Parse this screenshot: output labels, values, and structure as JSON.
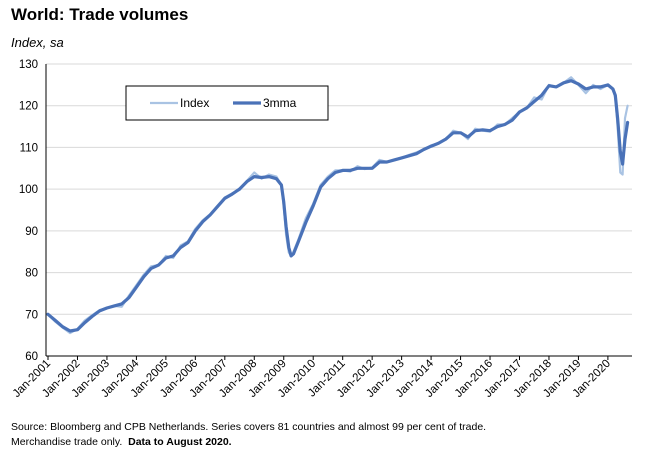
{
  "chart_data": {
    "type": "line",
    "title": "World: Trade volumes",
    "ylabel": "Index, sa",
    "xlabel": "",
    "ylim": [
      60,
      130
    ],
    "yticks": [
      60,
      70,
      80,
      90,
      100,
      110,
      120,
      130
    ],
    "xlim": [
      2001.0,
      2020.75
    ],
    "xticks": [
      "Jan-2001",
      "Jan-2002",
      "Jan-2003",
      "Jan-2004",
      "Jan-2005",
      "Jan-2006",
      "Jan-2007",
      "Jan-2008",
      "Jan-2009",
      "Jan-2010",
      "Jan-2011",
      "Jan-2012",
      "Jan-2013",
      "Jan-2014",
      "Jan-2015",
      "Jan-2016",
      "Jan-2017",
      "Jan-2018",
      "Jan-2019",
      "Jan-2020"
    ],
    "grid": "horizontal",
    "legend_position": "top-left",
    "series": [
      {
        "name": "Index",
        "color": "#a9c3e3",
        "x": [
          2001.0,
          2001.25,
          2001.5,
          2001.75,
          2002.0,
          2002.25,
          2002.5,
          2002.75,
          2003.0,
          2003.25,
          2003.5,
          2003.75,
          2004.0,
          2004.25,
          2004.5,
          2004.75,
          2005.0,
          2005.25,
          2005.5,
          2005.75,
          2006.0,
          2006.25,
          2006.5,
          2006.75,
          2007.0,
          2007.25,
          2007.5,
          2007.75,
          2008.0,
          2008.25,
          2008.5,
          2008.75,
          2008.92,
          2009.0,
          2009.08,
          2009.17,
          2009.25,
          2009.33,
          2009.5,
          2009.75,
          2010.0,
          2010.25,
          2010.5,
          2010.75,
          2011.0,
          2011.25,
          2011.5,
          2011.75,
          2012.0,
          2012.25,
          2012.5,
          2012.75,
          2013.0,
          2013.25,
          2013.5,
          2013.75,
          2014.0,
          2014.25,
          2014.5,
          2014.75,
          2015.0,
          2015.25,
          2015.5,
          2015.75,
          2016.0,
          2016.25,
          2016.5,
          2016.75,
          2017.0,
          2017.25,
          2017.5,
          2017.75,
          2018.0,
          2018.25,
          2018.5,
          2018.75,
          2019.0,
          2019.25,
          2019.5,
          2019.75,
          2020.0,
          2020.17,
          2020.25,
          2020.33,
          2020.42,
          2020.5,
          2020.58,
          2020.67
        ],
        "values": [
          70,
          68.2,
          66.8,
          65.5,
          66.5,
          68.5,
          69.8,
          71,
          71.5,
          72,
          71.8,
          74.5,
          77,
          79.5,
          81.5,
          81.8,
          84,
          83.5,
          86.5,
          87.5,
          90.5,
          92.5,
          94,
          96,
          98,
          99,
          99.8,
          102,
          104,
          102.5,
          103.5,
          103,
          101,
          96,
          89,
          84.8,
          84,
          85,
          88,
          93,
          96.5,
          101,
          103,
          104.5,
          104.5,
          104.2,
          105.5,
          104.8,
          105.2,
          107,
          106.5,
          107,
          107.5,
          108.2,
          108.8,
          109.5,
          110.5,
          111,
          112,
          114,
          113.5,
          112,
          114.5,
          114,
          113.8,
          115.5,
          115.5,
          117,
          118.5,
          119.5,
          122,
          121.5,
          125,
          124.5,
          125.5,
          126.8,
          125,
          123,
          125,
          124,
          125,
          124,
          122,
          115,
          104,
          103.5,
          117,
          120
        ]
      },
      {
        "name": "3mma",
        "color": "#4a72b8",
        "x": [
          2001.0,
          2001.25,
          2001.5,
          2001.75,
          2002.0,
          2002.25,
          2002.5,
          2002.75,
          2003.0,
          2003.25,
          2003.5,
          2003.75,
          2004.0,
          2004.25,
          2004.5,
          2004.75,
          2005.0,
          2005.25,
          2005.5,
          2005.75,
          2006.0,
          2006.25,
          2006.5,
          2006.75,
          2007.0,
          2007.25,
          2007.5,
          2007.75,
          2008.0,
          2008.25,
          2008.5,
          2008.75,
          2008.92,
          2009.0,
          2009.08,
          2009.17,
          2009.25,
          2009.33,
          2009.5,
          2009.75,
          2010.0,
          2010.25,
          2010.5,
          2010.75,
          2011.0,
          2011.25,
          2011.5,
          2011.75,
          2012.0,
          2012.25,
          2012.5,
          2012.75,
          2013.0,
          2013.25,
          2013.5,
          2013.75,
          2014.0,
          2014.25,
          2014.5,
          2014.75,
          2015.0,
          2015.25,
          2015.5,
          2015.75,
          2016.0,
          2016.25,
          2016.5,
          2016.75,
          2017.0,
          2017.25,
          2017.5,
          2017.75,
          2018.0,
          2018.25,
          2018.5,
          2018.75,
          2019.0,
          2019.25,
          2019.5,
          2019.75,
          2020.0,
          2020.17,
          2020.25,
          2020.33,
          2020.42,
          2020.5,
          2020.58,
          2020.67
        ],
        "values": [
          70,
          68.5,
          67,
          66,
          66.3,
          68,
          69.5,
          70.8,
          71.5,
          72,
          72.5,
          74,
          76.5,
          79,
          81,
          81.8,
          83.5,
          84,
          86,
          87.2,
          90,
          92.2,
          93.8,
          95.8,
          97.8,
          98.8,
          100,
          101.8,
          103,
          102.8,
          103,
          102.5,
          101,
          97,
          91,
          86,
          84,
          84.5,
          87.5,
          92,
          96,
          100.5,
          102.5,
          104,
          104.5,
          104.5,
          105,
          105,
          105,
          106.5,
          106.5,
          107,
          107.5,
          108,
          108.5,
          109.5,
          110.3,
          111,
          112,
          113.5,
          113.5,
          112.5,
          114,
          114.2,
          114,
          115,
          115.5,
          116.5,
          118.5,
          119.5,
          121,
          122.5,
          124.8,
          124.5,
          125.5,
          126,
          125.2,
          124,
          124.5,
          124.5,
          125,
          124,
          122.5,
          117,
          109,
          106,
          112,
          116
        ]
      }
    ]
  },
  "source": {
    "line1": "Source: Bloomberg and CPB Netherlands. Series covers 81 countries and almost 99 per cent of trade.",
    "line2": "Merchandise trade only.",
    "line2_bold": "Data to August 2020."
  }
}
